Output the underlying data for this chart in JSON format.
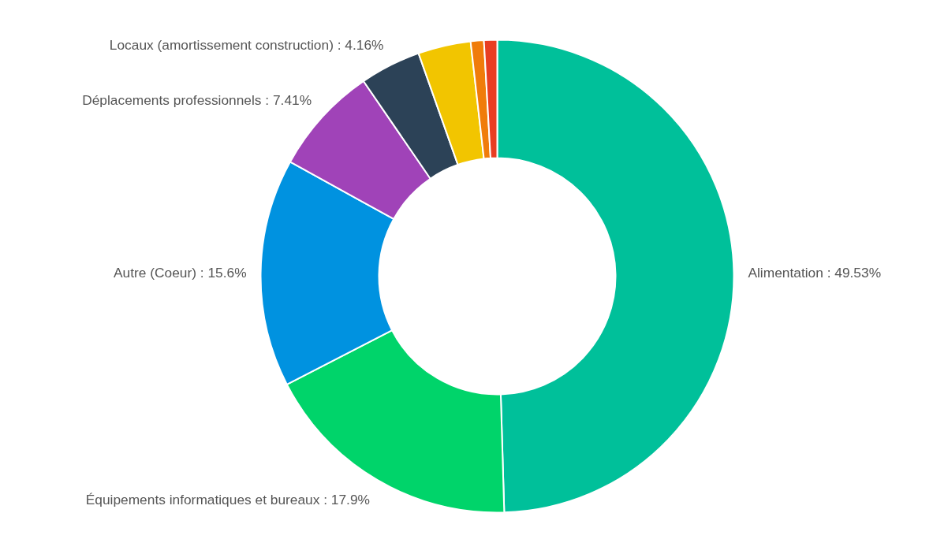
{
  "chart_data": {
    "type": "donut",
    "categories": [
      "Alimentation",
      "Équipements informatiques et bureaux",
      "Autre (Coeur)",
      "Déplacements professionnels",
      "Locaux (amortissement construction)",
      null,
      null,
      null
    ],
    "values": [
      49.53,
      17.9,
      15.6,
      7.41,
      4.16,
      3.6,
      0.9,
      0.9
    ],
    "value_labels": [
      "49.53%",
      "17.9%",
      "15.6%",
      "7.41%",
      "4.16%",
      null,
      null,
      null
    ],
    "colors": [
      "#00c09a",
      "#00d46a",
      "#0092e0",
      "#a043b8",
      "#2c4257",
      "#f2c500",
      "#f07c0a",
      "#e83e22"
    ],
    "legend": false
  }
}
